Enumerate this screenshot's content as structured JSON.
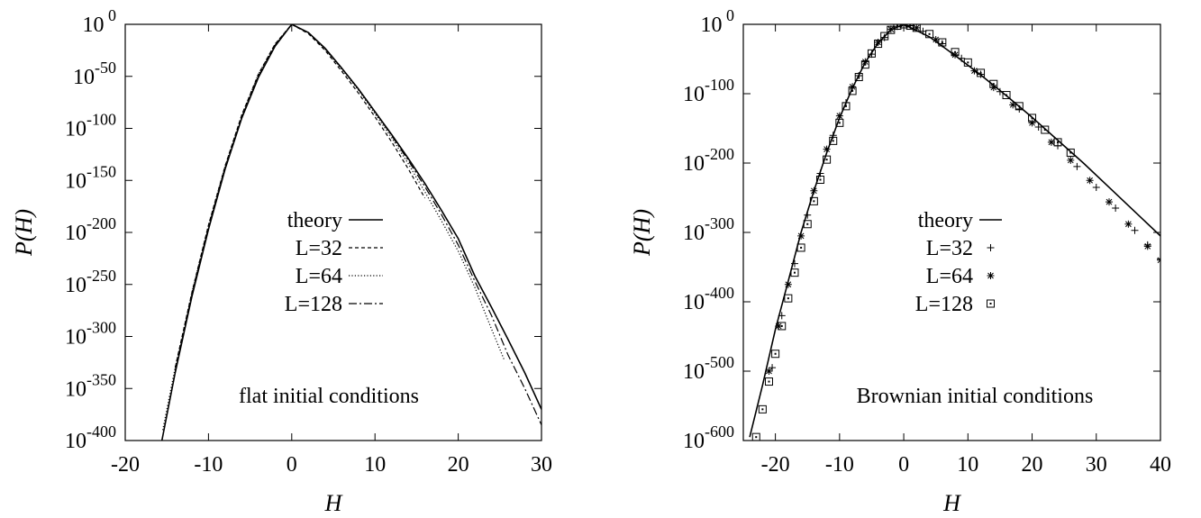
{
  "chart_data": [
    {
      "type": "line",
      "xlabel": "H",
      "ylabel": "P(H)",
      "xlim": [
        -20,
        30
      ],
      "ylim_log10": [
        -400,
        0
      ],
      "y_scale": "log",
      "x_ticks": [
        -20,
        -10,
        0,
        10,
        20,
        30
      ],
      "y_ticks": [
        {
          "base": "10",
          "exp": " 0",
          "value_log10": 0
        },
        {
          "base": "10",
          "exp": "-50",
          "value_log10": -50
        },
        {
          "base": "10",
          "exp": "-100",
          "value_log10": -100
        },
        {
          "base": "10",
          "exp": "-150",
          "value_log10": -150
        },
        {
          "base": "10",
          "exp": "-200",
          "value_log10": -200
        },
        {
          "base": "10",
          "exp": "-250",
          "value_log10": -250
        },
        {
          "base": "10",
          "exp": "-300",
          "value_log10": -300
        },
        {
          "base": "10",
          "exp": "-350",
          "value_log10": -350
        },
        {
          "base": "10",
          "exp": "-400",
          "value_log10": -400
        }
      ],
      "annotation": "flat initial conditions",
      "legend_placement": "center",
      "series": [
        {
          "name": "theory",
          "style": "solid",
          "x": [
            -15.6,
            -14,
            -12,
            -10,
            -8,
            -6,
            -4,
            -2,
            0,
            2,
            4,
            6,
            8,
            10,
            12,
            14,
            16,
            18,
            20,
            22,
            24,
            26,
            28,
            30
          ],
          "log10_y": [
            -400,
            -335,
            -262,
            -197,
            -139,
            -90,
            -51,
            -21,
            0,
            -8,
            -23,
            -42,
            -62,
            -84,
            -106,
            -129,
            -153,
            -179,
            -206,
            -242,
            -272,
            -303,
            -335,
            -370
          ]
        },
        {
          "name": "L=32",
          "style": "dashed",
          "x": [
            -14,
            -12,
            -10,
            -8,
            -6,
            -4,
            -2,
            0,
            2,
            4,
            6,
            8,
            10,
            12,
            14,
            16
          ],
          "log10_y": [
            -330,
            -258,
            -193,
            -136,
            -87,
            -48,
            -19,
            0,
            -9,
            -25,
            -45,
            -66,
            -89,
            -113,
            -139,
            -167
          ]
        },
        {
          "name": "L=64",
          "style": "dotted",
          "x": [
            -15.5,
            -14,
            -12,
            -10,
            -8,
            -6,
            -4,
            -2,
            0,
            2,
            4,
            6,
            8,
            10,
            12,
            14,
            16,
            18,
            20,
            22,
            24,
            25.5
          ],
          "log10_y": [
            -390,
            -330,
            -258,
            -193,
            -136,
            -87,
            -48,
            -19,
            0,
            -8,
            -24,
            -43,
            -63,
            -86,
            -109,
            -134,
            -161,
            -189,
            -218,
            -253,
            -293,
            -322
          ]
        },
        {
          "name": "L=128",
          "style": "dashdot",
          "x": [
            -14,
            -12,
            -10,
            -8,
            -6,
            -4,
            -2,
            0,
            2,
            4,
            6,
            8,
            10,
            12,
            14,
            16,
            18,
            20,
            22,
            24,
            26,
            28,
            30
          ],
          "log10_y": [
            -333,
            -260,
            -195,
            -138,
            -89,
            -50,
            -20,
            0,
            -8,
            -23,
            -42,
            -62,
            -84,
            -107,
            -131,
            -156,
            -183,
            -212,
            -247,
            -280,
            -318,
            -350,
            -385
          ]
        }
      ]
    },
    {
      "type": "scatter",
      "xlabel": "H",
      "ylabel": "P(H)",
      "xlim": [
        -25,
        40
      ],
      "ylim_log10": [
        -600,
        0
      ],
      "y_scale": "log",
      "x_ticks": [
        -20,
        -10,
        0,
        10,
        20,
        30,
        40
      ],
      "y_ticks": [
        {
          "base": "10",
          "exp": " 0",
          "value_log10": 0
        },
        {
          "base": "10",
          "exp": "-100",
          "value_log10": -100
        },
        {
          "base": "10",
          "exp": "-200",
          "value_log10": -200
        },
        {
          "base": "10",
          "exp": "-300",
          "value_log10": -300
        },
        {
          "base": "10",
          "exp": "-400",
          "value_log10": -400
        },
        {
          "base": "10",
          "exp": "-500",
          "value_log10": -500
        },
        {
          "base": "10",
          "exp": "-600",
          "value_log10": -600
        }
      ],
      "annotation": "Brownian initial conditions",
      "legend_placement": "center",
      "series": [
        {
          "name": "theory",
          "style": "solid",
          "x": [
            -24,
            -22,
            -20,
            -18,
            -16,
            -14,
            -12,
            -10,
            -8,
            -6,
            -4,
            -2,
            0,
            4,
            8,
            12,
            16,
            20,
            24,
            28,
            32,
            36,
            40
          ],
          "log10_y": [
            -595,
            -520,
            -440,
            -370,
            -300,
            -240,
            -185,
            -135,
            -92,
            -55,
            -27,
            -8,
            0,
            -18,
            -45,
            -73,
            -103,
            -134,
            -167,
            -200,
            -235,
            -270,
            -305
          ]
        },
        {
          "name": "L=32",
          "style": "plus",
          "x": [
            -20.5,
            -19,
            -17,
            -15,
            -13,
            -11,
            -9,
            -7,
            -5,
            -3,
            -1,
            1,
            3,
            6,
            9,
            12,
            15,
            18,
            21,
            24,
            27,
            30,
            33,
            36,
            38,
            40
          ],
          "log10_y": [
            -495,
            -420,
            -345,
            -275,
            -215,
            -160,
            -113,
            -74,
            -43,
            -19,
            -3,
            -2,
            -10,
            -28,
            -49,
            -72,
            -97,
            -122,
            -148,
            -175,
            -205,
            -235,
            -265,
            -297,
            -318,
            -338
          ]
        },
        {
          "name": "L=64",
          "style": "star",
          "x": [
            -21,
            -19.5,
            -18,
            -16,
            -14,
            -12,
            -10,
            -8,
            -6,
            -4,
            -2,
            0,
            2,
            5,
            8,
            11,
            14,
            17,
            20,
            23,
            26,
            29,
            32,
            35,
            38,
            40
          ],
          "log10_y": [
            -500,
            -435,
            -375,
            -305,
            -240,
            -180,
            -132,
            -90,
            -54,
            -26,
            -7,
            0,
            -5,
            -22,
            -44,
            -67,
            -91,
            -116,
            -142,
            -170,
            -196,
            -225,
            -256,
            -288,
            -320,
            -340
          ]
        },
        {
          "name": "L=128",
          "style": "square",
          "x": [
            -23,
            -22,
            -21,
            -20,
            -19,
            -18,
            -17,
            -16,
            -15,
            -14,
            -13,
            -12,
            -11,
            -10,
            -9,
            -8,
            -7,
            -6,
            -5,
            -4,
            -3,
            -2,
            -1,
            0,
            1,
            2,
            4,
            6,
            8,
            10,
            12,
            14,
            16,
            18,
            20,
            22,
            24,
            26
          ],
          "log10_y": [
            -595,
            -555,
            -515,
            -475,
            -435,
            -395,
            -358,
            -322,
            -288,
            -255,
            -224,
            -195,
            -168,
            -142,
            -118,
            -96,
            -76,
            -58,
            -42,
            -28,
            -17,
            -8,
            -2,
            0,
            -2,
            -5,
            -14,
            -26,
            -40,
            -55,
            -70,
            -86,
            -102,
            -118,
            -135,
            -152,
            -170,
            -185
          ]
        }
      ]
    }
  ]
}
